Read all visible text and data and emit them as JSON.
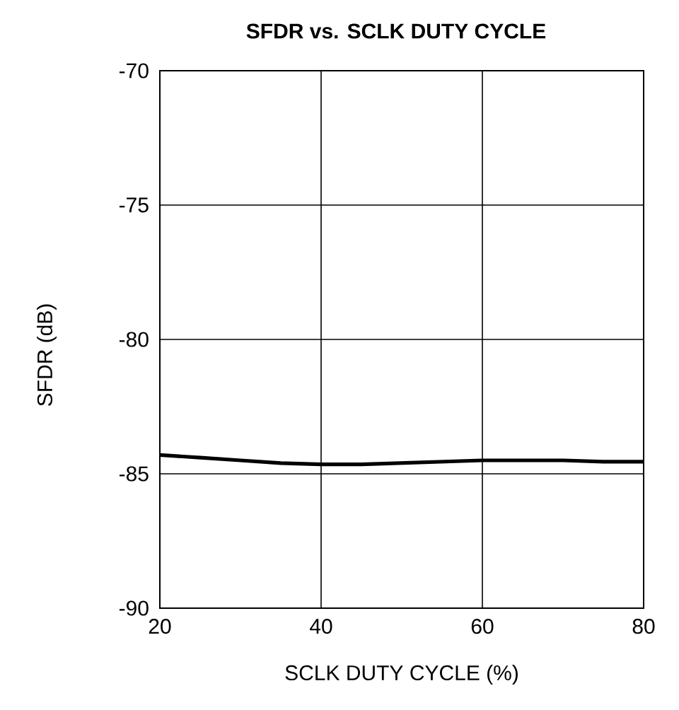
{
  "chart_data": {
    "type": "line",
    "title": "SFDR vs. SCLK DUTY CYCLE",
    "xlabel": "SCLK DUTY CYCLE (%)",
    "ylabel": "SFDR (dB)",
    "x": [
      20,
      25,
      30,
      35,
      40,
      45,
      50,
      55,
      60,
      65,
      70,
      75,
      80
    ],
    "series": [
      {
        "color": "#000000",
        "values": [
          -84.3,
          -84.4,
          -84.5,
          -84.6,
          -84.65,
          -84.65,
          -84.6,
          -84.55,
          -84.5,
          -84.5,
          -84.5,
          -84.55,
          -84.55
        ]
      }
    ],
    "xlim": [
      20,
      80
    ],
    "xticks": [
      20,
      40,
      60,
      80
    ],
    "ylim": [
      -90,
      -70
    ],
    "yticks": [
      -90,
      -85,
      -80,
      -75,
      -70
    ],
    "grid": true,
    "marker": "none",
    "line_style": "solid"
  }
}
